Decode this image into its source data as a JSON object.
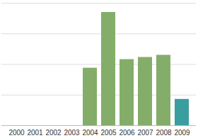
{
  "chart_data": {
    "type": "bar",
    "categories": [
      "2000",
      "2001",
      "2002",
      "2003",
      "2004",
      "2005",
      "2006",
      "2007",
      "2008",
      "2009"
    ],
    "values": [
      0,
      0,
      0,
      0,
      1.88,
      3.7,
      2.16,
      2.23,
      2.3,
      0.86
    ],
    "colors": [
      "#84ad69",
      "#84ad69",
      "#84ad69",
      "#84ad69",
      "#84ad69",
      "#84ad69",
      "#84ad69",
      "#84ad69",
      "#84ad69",
      "#3a9e9e"
    ],
    "ylim": [
      0,
      4
    ],
    "yticks": [
      0,
      1,
      2,
      3,
      4
    ],
    "grid": true,
    "tick_labels": "x"
  }
}
